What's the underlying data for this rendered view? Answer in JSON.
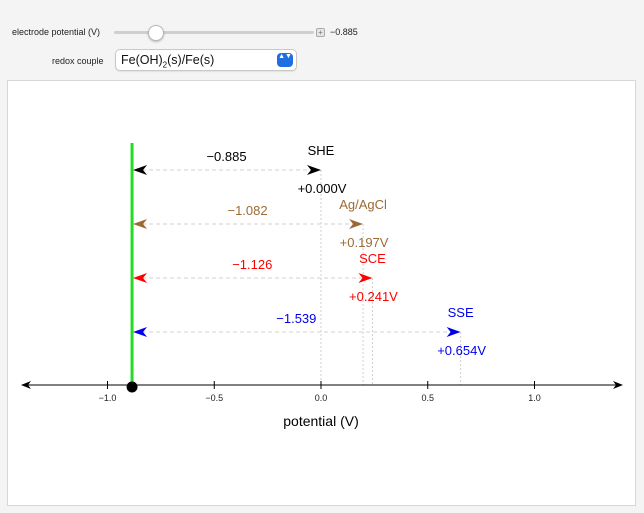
{
  "controls": {
    "electrode_label": "electrode potential (V)",
    "electrode_value": "−0.885",
    "plus_glyph": "+",
    "redox_label": "redox couple",
    "redox_selected_main": "Fe(OH)",
    "redox_selected_sub": "2",
    "redox_selected_rest": "(s)/Fe(s)",
    "select_arrows": "▲▼"
  },
  "colors": {
    "she": "#000000",
    "agagcl": "#9c6a34",
    "sce": "#ff0000",
    "sse": "#0000ee",
    "electrode_line": "#22dd22"
  },
  "chart_data": {
    "type": "number-line",
    "xlabel": "potential (V)",
    "xlim": [
      -1.4,
      1.4
    ],
    "ticks": [
      -1.0,
      -0.5,
      0.0,
      0.5,
      1.0
    ],
    "tick_labels": [
      "−1.0",
      "−0.5",
      "0.0",
      "0.5",
      "1.0"
    ],
    "electrode_potential": -0.885,
    "references": [
      {
        "name": "SHE",
        "potential": 0.0,
        "potential_label": "+0.000V",
        "difference_label": "−0.885"
      },
      {
        "name": "Ag/AgCl",
        "potential": 0.197,
        "potential_label": "+0.197V",
        "difference_label": "−1.082"
      },
      {
        "name": "SCE",
        "potential": 0.241,
        "potential_label": "+0.241V",
        "difference_label": "−1.126"
      },
      {
        "name": "SSE",
        "potential": 0.654,
        "potential_label": "+0.654V",
        "difference_label": "−1.539"
      }
    ]
  }
}
